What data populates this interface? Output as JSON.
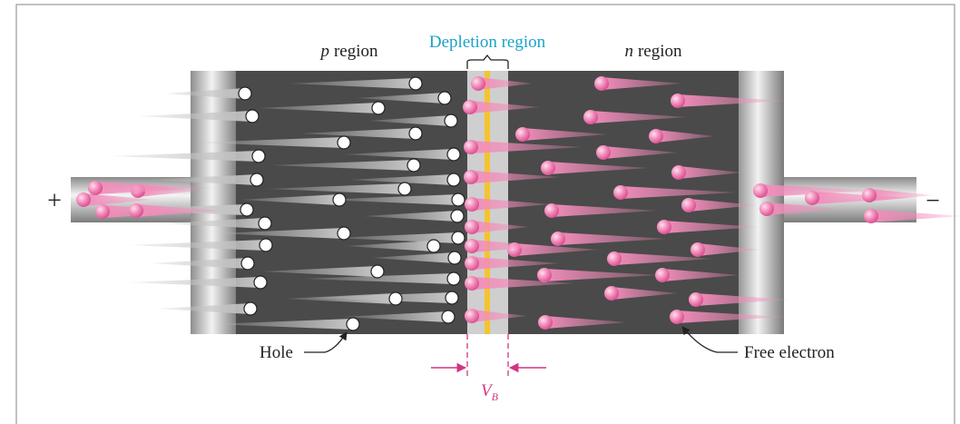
{
  "labels": {
    "p_region": {
      "italic": "p",
      "text": "region"
    },
    "depletion_region": "Depletion region",
    "n_region": {
      "italic": "n",
      "text": "region"
    },
    "plus": "+",
    "minus": "−",
    "hole": "Hole",
    "free_electron": "Free electron",
    "barrier": {
      "main": "V",
      "subscript": "B"
    }
  }
}
